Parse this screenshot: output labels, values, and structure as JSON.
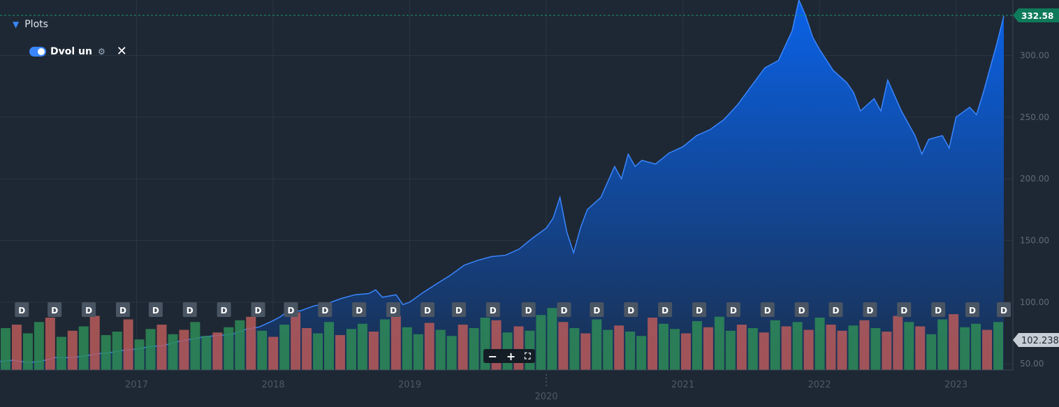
{
  "legend": {
    "plots_label": "Plots",
    "series_label": "Dvol un",
    "gear_icon": "gear-icon",
    "close_icon": "close-icon"
  },
  "zoom": {
    "minus": "−",
    "plus": "+",
    "fullscreen": "⛶"
  },
  "colors": {
    "background": "#1e2834",
    "area_top": "#0a62e8",
    "area_bottom": "#1a2f4e",
    "line": "#3a86ff",
    "vol_up": "#2e8b57",
    "vol_down": "#b85b5b",
    "last_price_bg": "#0f7a5a",
    "vol_tag_bg": "#c8ced6"
  },
  "chart_data": {
    "type": "area",
    "title": "",
    "xlabel": "",
    "ylabel": "",
    "x_ticks": [
      "2017",
      "2018",
      "2019",
      "2020",
      "2021",
      "2022",
      "2023"
    ],
    "y_ticks": [
      "300.00",
      "250.00",
      "200.00",
      "150.00",
      "100.00",
      "50.00"
    ],
    "ylim": [
      45,
      345
    ],
    "xlim": [
      2016.0,
      2023.35
    ],
    "grid": true,
    "last_price_label": "332.58",
    "volume_label": "102.238",
    "series": [
      {
        "kind": "price",
        "x": [
          2016.0,
          2016.1,
          2016.2,
          2016.3,
          2016.4,
          2016.5,
          2016.6,
          2016.7,
          2016.8,
          2016.9,
          2017.0,
          2017.1,
          2017.2,
          2017.3,
          2017.4,
          2017.5,
          2017.6,
          2017.7,
          2017.8,
          2017.9,
          2018.0,
          2018.05,
          2018.1,
          2018.2,
          2018.3,
          2018.4,
          2018.5,
          2018.6,
          2018.7,
          2018.75,
          2018.8,
          2018.9,
          2018.95,
          2019.0,
          2019.1,
          2019.2,
          2019.3,
          2019.4,
          2019.5,
          2019.6,
          2019.7,
          2019.8,
          2019.9,
          2020.0,
          2020.05,
          2020.1,
          2020.15,
          2020.2,
          2020.25,
          2020.3,
          2020.4,
          2020.5,
          2020.55,
          2020.6,
          2020.65,
          2020.7,
          2020.8,
          2020.9,
          2021.0,
          2021.1,
          2021.2,
          2021.3,
          2021.4,
          2021.5,
          2021.6,
          2021.7,
          2021.8,
          2021.85,
          2021.9,
          2021.95,
          2022.0,
          2022.1,
          2022.2,
          2022.25,
          2022.3,
          2022.4,
          2022.45,
          2022.5,
          2022.6,
          2022.7,
          2022.75,
          2022.8,
          2022.9,
          2022.95,
          2023.0,
          2023.1,
          2023.15,
          2023.2,
          2023.3,
          2023.35
        ],
        "values": [
          52,
          53,
          51,
          52,
          55,
          55,
          56,
          58,
          59,
          61,
          62,
          64,
          65,
          68,
          70,
          72,
          73,
          74,
          78,
          80,
          85,
          88,
          92,
          93,
          97,
          99,
          103,
          106,
          107,
          110,
          104,
          106,
          98,
          100,
          108,
          115,
          122,
          130,
          134,
          137,
          138,
          143,
          152,
          160,
          168,
          185,
          157,
          140,
          160,
          175,
          185,
          210,
          200,
          220,
          210,
          215,
          212,
          221,
          226,
          235,
          240,
          248,
          260,
          275,
          290,
          296,
          320,
          345,
          332,
          315,
          305,
          288,
          278,
          270,
          255,
          265,
          255,
          280,
          255,
          235,
          220,
          232,
          235,
          225,
          250,
          258,
          252,
          270,
          310,
          332
        ]
      },
      {
        "kind": "volume",
        "values": [
          48,
          52,
          42,
          55,
          60,
          38,
          45,
          50,
          62,
          40,
          44,
          58,
          35,
          47,
          52,
          41,
          46,
          55,
          39,
          43,
          49,
          57,
          61,
          45,
          38,
          52,
          66,
          48,
          42,
          55,
          40,
          47,
          53,
          44,
          58,
          62,
          49,
          41,
          54,
          46,
          39,
          52,
          48,
          60,
          57,
          43,
          50,
          45,
          63,
          71,
          55,
          48,
          42,
          58,
          46,
          51,
          44,
          39,
          60,
          53,
          47,
          42,
          56,
          49,
          61,
          45,
          52,
          48,
          43,
          57,
          50,
          55,
          46,
          60,
          52,
          45,
          51,
          57,
          48,
          44,
          62,
          55,
          50,
          41,
          58,
          64,
          49,
          53,
          46,
          55
        ],
        "up": [
          1,
          0,
          1,
          1,
          0,
          1,
          0,
          1,
          0,
          1,
          1,
          0,
          1,
          1,
          0,
          1,
          0,
          1,
          1,
          0,
          1,
          1,
          0,
          1,
          0,
          1,
          0,
          0,
          1,
          1,
          0,
          1,
          1,
          0,
          1,
          0,
          1,
          1,
          0,
          1,
          1,
          0,
          1,
          1,
          0,
          1,
          0,
          1,
          1,
          1,
          0,
          1,
          0,
          1,
          1,
          0,
          1,
          1,
          0,
          1,
          1,
          0,
          1,
          0,
          1,
          1,
          0,
          1,
          0,
          1,
          0,
          1,
          0,
          1,
          0,
          0,
          1,
          0,
          1,
          0,
          0,
          1,
          0,
          1,
          1,
          0,
          1,
          1,
          0,
          1
        ],
        "vmax": 120
      }
    ],
    "markers": {
      "label": "D",
      "x": [
        2016.16,
        2016.4,
        2016.65,
        2016.9,
        2017.14,
        2017.39,
        2017.64,
        2017.89,
        2018.13,
        2018.38,
        2018.63,
        2018.88,
        2019.13,
        2019.36,
        2019.61,
        2019.87,
        2020.13,
        2020.37,
        2020.62,
        2020.87,
        2021.12,
        2021.37,
        2021.62,
        2021.87,
        2022.12,
        2022.37,
        2022.62,
        2022.87,
        2023.12,
        2023.35
      ]
    }
  }
}
